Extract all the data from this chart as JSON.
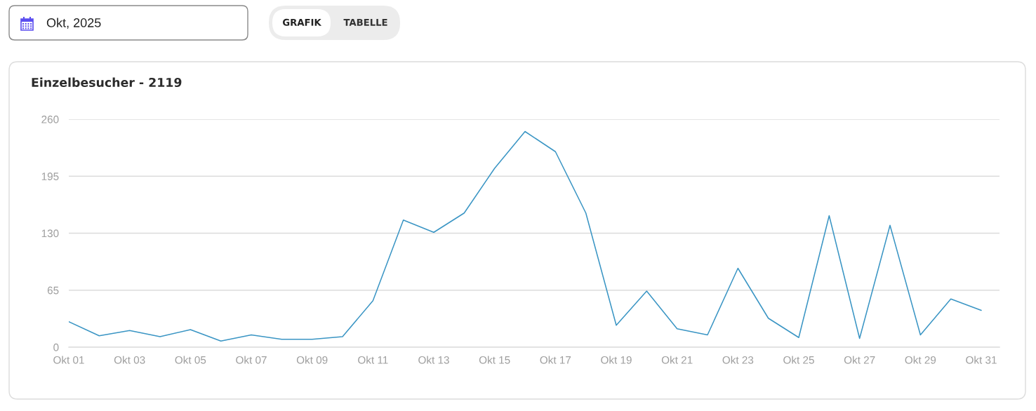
{
  "chart_data": {
    "type": "line",
    "title": "Einzelbesucher - 2119",
    "annotations": [
      "Okt, 2025",
      "GRAFIK",
      "TABELLE"
    ],
    "categories": [
      "Okt 01",
      null,
      "Okt 03",
      null,
      "Okt 05",
      null,
      "Okt 07",
      null,
      "Okt 09",
      null,
      "Okt 11",
      null,
      "Okt 13",
      null,
      "Okt 15",
      null,
      "Okt 17",
      null,
      "Okt 19",
      null,
      "Okt 21",
      null,
      "Okt 23",
      null,
      "Okt 25",
      null,
      "Okt 27",
      null,
      "Okt 29",
      null,
      "Okt 31"
    ],
    "series": [
      {
        "color": "#3a95c4",
        "values": [
          29,
          13,
          19,
          12,
          20,
          7,
          14,
          9,
          9,
          12,
          53,
          145,
          131,
          153,
          204,
          246,
          223,
          153,
          25,
          64,
          21,
          14,
          90,
          33,
          11,
          150,
          10,
          139,
          14,
          55,
          42
        ]
      }
    ],
    "ylim": [
      0,
      260
    ],
    "yticks": [
      0,
      65,
      130,
      195,
      260
    ],
    "grid": "y"
  }
}
